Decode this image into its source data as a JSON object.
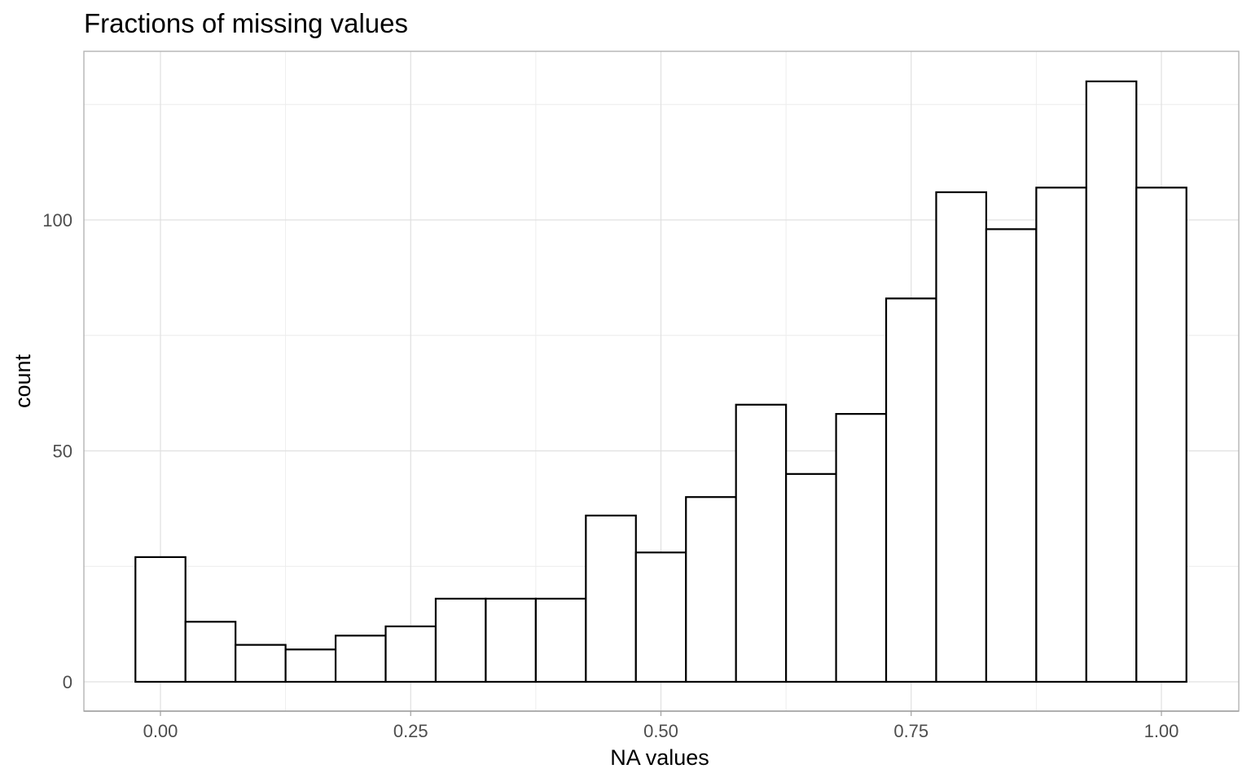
{
  "chart_data": {
    "type": "bar",
    "title": "Fractions of missing values",
    "xlabel": "NA values",
    "ylabel": "count",
    "bin_width": 0.05,
    "bin_centers": [
      0.0,
      0.05,
      0.1,
      0.15,
      0.2,
      0.25,
      0.3,
      0.35,
      0.4,
      0.45,
      0.5,
      0.55,
      0.6,
      0.65,
      0.7,
      0.75,
      0.8,
      0.85,
      0.9,
      0.95,
      1.0
    ],
    "values": [
      27,
      13,
      8,
      7,
      10,
      12,
      18,
      18,
      18,
      36,
      28,
      40,
      60,
      45,
      58,
      83,
      106,
      98,
      107,
      130,
      107
    ],
    "xlim": [
      -0.025,
      1.025
    ],
    "ylim": [
      0,
      130
    ],
    "x_ticks": [
      0.0,
      0.25,
      0.5,
      0.75,
      1.0
    ],
    "x_tick_labels": [
      "0.00",
      "0.25",
      "0.50",
      "0.75",
      "1.00"
    ],
    "y_ticks": [
      0,
      50,
      100
    ],
    "y_tick_labels": [
      "0",
      "50",
      "100"
    ],
    "grid": true,
    "bar_fill": "#ffffff",
    "bar_outline": "#000000"
  }
}
